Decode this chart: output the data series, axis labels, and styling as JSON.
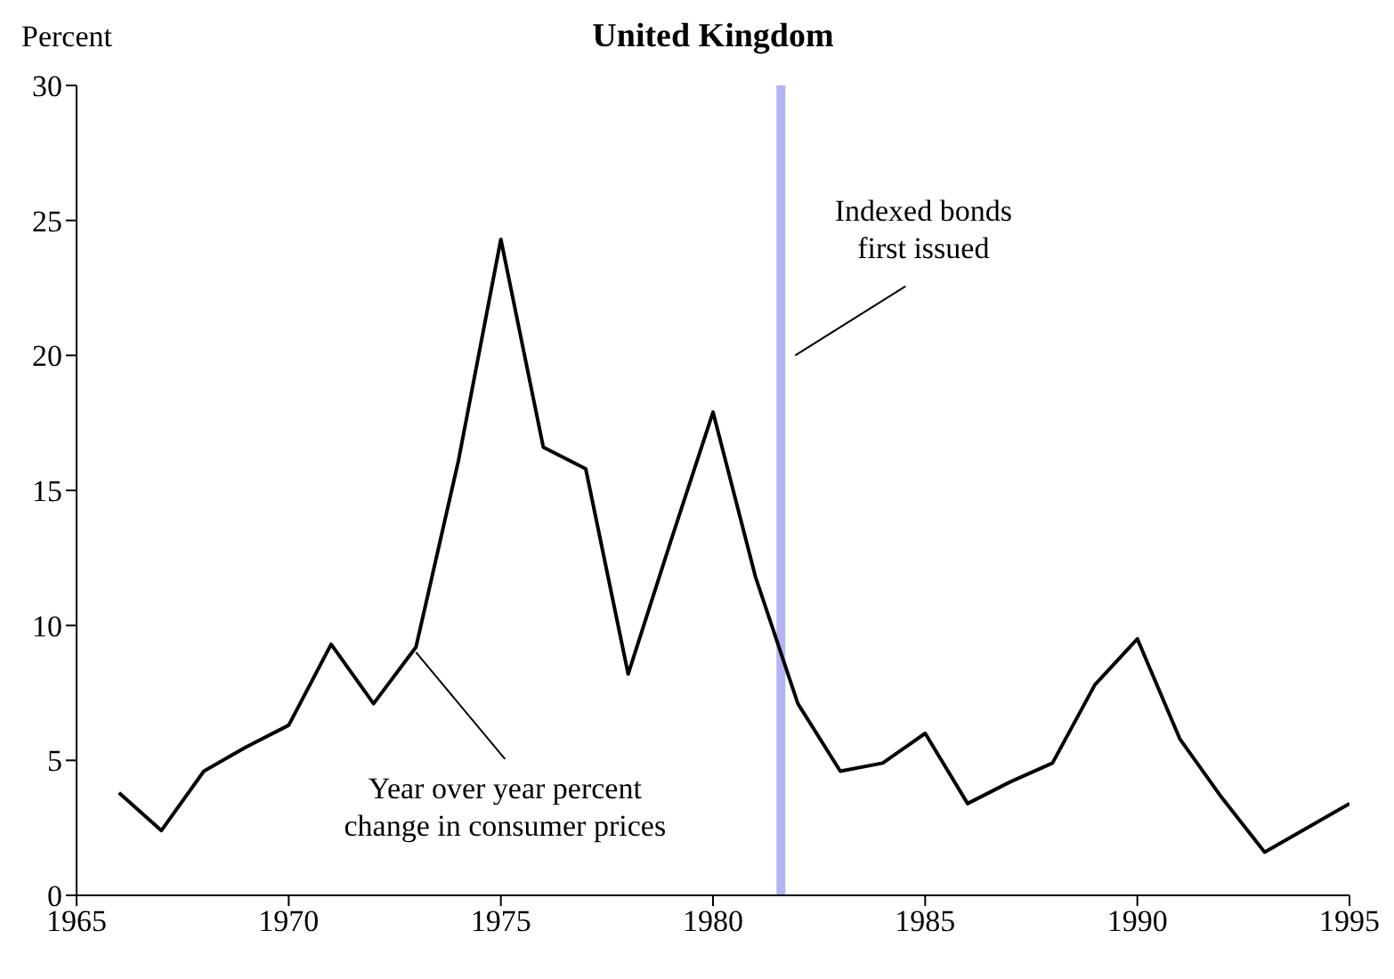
{
  "chart_data": {
    "type": "line",
    "title": "United Kingdom",
    "ylabel": "Percent",
    "x": [
      1966,
      1967,
      1968,
      1969,
      1970,
      1971,
      1972,
      1973,
      1974,
      1975,
      1976,
      1977,
      1978,
      1979,
      1980,
      1981,
      1982,
      1983,
      1984,
      1985,
      1986,
      1987,
      1988,
      1989,
      1990,
      1991,
      1992,
      1993,
      1994,
      1995
    ],
    "series": [
      {
        "color": "#000000",
        "values": [
          3.8,
          2.4,
          4.6,
          5.5,
          6.3,
          9.3,
          7.1,
          9.2,
          16.1,
          24.3,
          16.6,
          15.8,
          8.2,
          13.1,
          17.9,
          11.8,
          7.1,
          4.6,
          4.9,
          6.0,
          3.4,
          4.2,
          4.9,
          7.8,
          9.5,
          5.8,
          3.6,
          1.6,
          2.5,
          3.4
        ]
      }
    ],
    "xlim": [
      1965,
      1995
    ],
    "xticks": [
      1965,
      1970,
      1975,
      1980,
      1985,
      1990,
      1995
    ],
    "ylim": [
      0,
      30
    ],
    "yticks": [
      0,
      5,
      10,
      15,
      20,
      25,
      30
    ],
    "marker": "none",
    "line_style": "solid",
    "ref_lines": [
      {
        "axis": "x",
        "value": 1981.6,
        "label": "Indexed bonds first issued",
        "color": "#b4b4f0"
      }
    ],
    "annotations": [
      {
        "text": "Year over year percent change in consumer prices",
        "x": 1973,
        "y": 9.2
      }
    ]
  }
}
